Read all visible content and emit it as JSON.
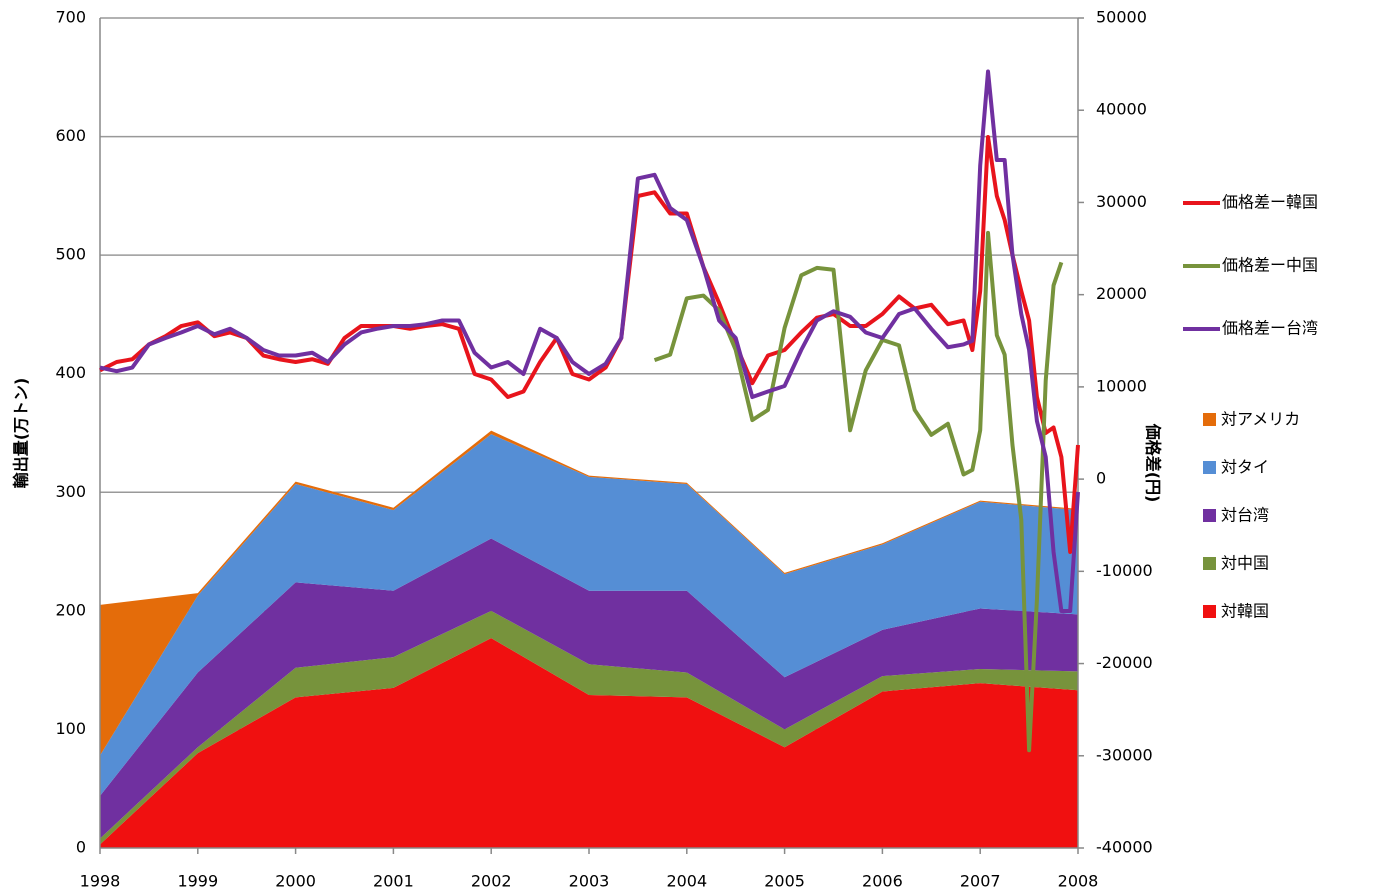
{
  "chart_data": [
    {
      "type": "area",
      "stacked": true,
      "ylabel": "輸出量(万トン)",
      "x": [
        1998,
        1999,
        2000,
        2001,
        2002,
        2003,
        2004,
        2005,
        2006,
        2007,
        2008
      ],
      "xlim": [
        1998,
        2008
      ],
      "xticks": [
        1998,
        1999,
        2000,
        2001,
        2002,
        2003,
        2004,
        2005,
        2006,
        2007,
        2008
      ],
      "ylim": [
        0,
        700
      ],
      "yticks": [
        0,
        100,
        200,
        300,
        400,
        500,
        600,
        700
      ],
      "grid": true,
      "series": [
        {
          "name": "対韓国",
          "color": "#f01010",
          "values": [
            3,
            80,
            127,
            135,
            177,
            129,
            127,
            85,
            132,
            139,
            133
          ]
        },
        {
          "name": "対中国",
          "color": "#77933c",
          "values": [
            5,
            5,
            25,
            26,
            23,
            26,
            21,
            15,
            13,
            12,
            16
          ]
        },
        {
          "name": "対台湾",
          "color": "#7030a0",
          "values": [
            36,
            63,
            72,
            56,
            61,
            62,
            69,
            44,
            39,
            51,
            48
          ]
        },
        {
          "name": "対タイ",
          "color": "#558ed5",
          "values": [
            34,
            65,
            83,
            68,
            88,
            96,
            90,
            87,
            72,
            90,
            88
          ]
        },
        {
          "name": "対アメリカ",
          "color": "#e46c0a",
          "values": [
            127,
            2,
            2,
            2,
            3,
            1,
            1,
            1,
            1,
            1,
            1
          ]
        }
      ]
    },
    {
      "type": "line",
      "y2label": "価格差(円)",
      "xlim": [
        1998,
        2008
      ],
      "x": [
        1998,
        1998.17,
        1998.33,
        1998.5,
        1998.67,
        1998.83,
        1999,
        1999.17,
        1999.33,
        1999.5,
        1999.67,
        1999.83,
        2000,
        2000.17,
        2000.33,
        2000.5,
        2000.67,
        2000.83,
        2001,
        2001.17,
        2001.33,
        2001.5,
        2001.67,
        2001.83,
        2002,
        2002.17,
        2002.33,
        2002.5,
        2002.67,
        2002.83,
        2003,
        2003.17,
        2003.33,
        2003.5,
        2003.67,
        2003.83,
        2004,
        2004.17,
        2004.33,
        2004.5,
        2004.67,
        2004.83,
        2005,
        2005.17,
        2005.33,
        2005.5,
        2005.67,
        2005.83,
        2006,
        2006.17,
        2006.33,
        2006.5,
        2006.67,
        2006.83,
        2006.92,
        2007,
        2007.08,
        2007.17,
        2007.25,
        2007.33,
        2007.42,
        2007.5,
        2007.58,
        2007.67,
        2007.75,
        2007.83,
        2007.92,
        2008
      ],
      "y2lim": [
        -40000,
        50000
      ],
      "y2ticks": [
        -40000,
        -30000,
        -20000,
        -10000,
        0,
        10000,
        20000,
        30000,
        40000,
        50000
      ],
      "series": [
        {
          "name": "価格差ー韓国",
          "color": "#e8141c",
          "axis": "y2",
          "values": [
            11800,
            12700,
            13000,
            14600,
            15500,
            16600,
            17000,
            15500,
            15900,
            15300,
            13400,
            13000,
            12700,
            13000,
            12500,
            15300,
            16600,
            16600,
            16600,
            16300,
            16600,
            16800,
            16300,
            11400,
            10800,
            8900,
            9500,
            12700,
            15300,
            11400,
            10800,
            12100,
            15300,
            30700,
            31100,
            28800,
            28800,
            23000,
            19100,
            14600,
            10400,
            13400,
            14000,
            15900,
            17500,
            17900,
            16600,
            16600,
            17900,
            19800,
            18500,
            18900,
            16800,
            17200,
            14000,
            20400,
            37100,
            30700,
            28100,
            24300,
            20400,
            17200,
            8900,
            5000,
            5600,
            2400,
            -7900,
            3700
          ]
        },
        {
          "name": "価格差ー中国",
          "color": "#77933c",
          "axis": "y2",
          "values": [
            null,
            null,
            null,
            null,
            null,
            null,
            null,
            null,
            null,
            null,
            null,
            null,
            null,
            null,
            null,
            null,
            null,
            null,
            null,
            null,
            null,
            null,
            null,
            null,
            null,
            null,
            null,
            null,
            null,
            null,
            null,
            null,
            null,
            null,
            12900,
            13500,
            19600,
            19900,
            18300,
            14000,
            6400,
            7500,
            16400,
            22100,
            22900,
            22700,
            5300,
            11800,
            15100,
            14500,
            7500,
            4800,
            6000,
            500,
            1000,
            5300,
            26700,
            15600,
            13500,
            3700,
            -4400,
            -29400,
            -13100,
            10700,
            21000,
            23500,
            null,
            null
          ]
        },
        {
          "name": "価格差ー台湾",
          "color": "#7030a0",
          "axis": "y2",
          "values": [
            12100,
            11700,
            12100,
            14600,
            15300,
            15900,
            16600,
            15700,
            16300,
            15300,
            14000,
            13400,
            13400,
            13700,
            12700,
            14600,
            15900,
            16300,
            16600,
            16600,
            16800,
            17200,
            17200,
            13700,
            12100,
            12700,
            11400,
            16300,
            15300,
            12700,
            11400,
            12500,
            15300,
            32600,
            33000,
            29400,
            28100,
            23000,
            17200,
            15300,
            8900,
            9500,
            10100,
            14000,
            17200,
            18200,
            17600,
            15900,
            15300,
            17900,
            18500,
            16300,
            14300,
            14600,
            15000,
            34000,
            44200,
            34600,
            34600,
            24300,
            17900,
            14000,
            6300,
            2400,
            -7900,
            -14300,
            -14300,
            -1400
          ]
        }
      ]
    }
  ]
}
